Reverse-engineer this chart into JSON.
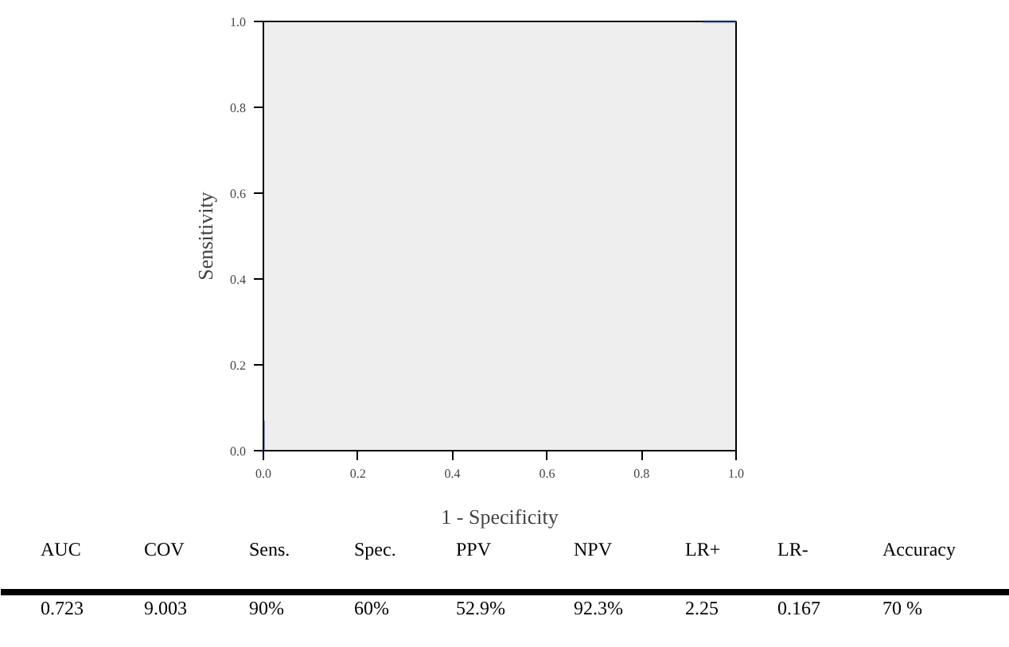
{
  "chart_data": [
    {
      "type": "line",
      "xlabel": "1 - Specificity",
      "ylabel": "Sensitivity",
      "x": [
        0,
        0,
        0.5,
        0.93,
        1
      ],
      "series": [
        {
          "color": "#3355aa",
          "values": [
            0,
            0.07,
            null,
            1,
            1
          ]
        }
      ],
      "xlim": [
        0,
        1
      ],
      "ylim": [
        0,
        1
      ],
      "xticks": [
        {
          "value": 0,
          "label": "0.0"
        },
        {
          "value": 0.2,
          "label": "0.2"
        },
        {
          "value": 0.4,
          "label": "0.4"
        },
        {
          "value": 0.6,
          "label": "0.6"
        },
        {
          "value": 0.8,
          "label": "0.8"
        },
        {
          "value": 1,
          "label": "1.0"
        }
      ],
      "yticks": [
        {
          "value": 0,
          "label": "0.0"
        },
        {
          "value": 0.2,
          "label": "0.2"
        },
        {
          "value": 0.4,
          "label": "0.4"
        },
        {
          "value": 0.6,
          "label": "0.6"
        },
        {
          "value": 0.8,
          "label": "0.8"
        },
        {
          "value": 1,
          "label": "1.0"
        }
      ],
      "grid": false,
      "marker": "none",
      "line_style": "solid"
    },
    {
      "type": "other",
      "annotations": [
        "AUC",
        "COV",
        "Sens.",
        "Spec.",
        "PPV",
        "NPV",
        "LR+",
        "LR-",
        "Accuracy",
        "0.723",
        "9.003",
        "90%",
        "60%",
        "52.9%",
        "92.3%",
        "2.25",
        "0.167",
        "70 %"
      ]
    }
  ]
}
